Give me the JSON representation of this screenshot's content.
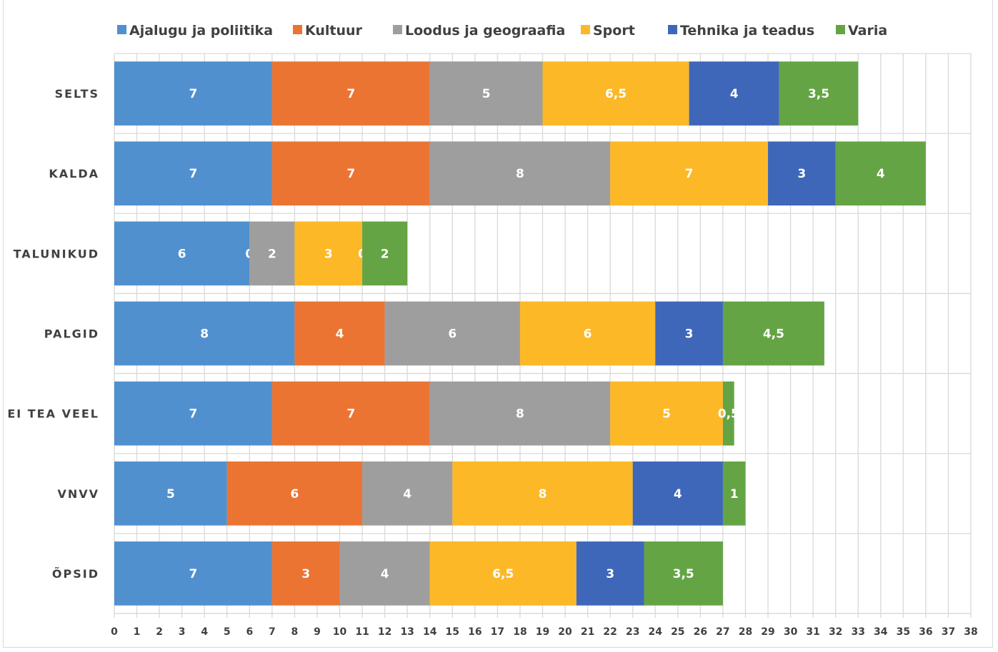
{
  "chart_data": {
    "type": "bar",
    "orientation": "horizontal",
    "stacked": true,
    "title": "",
    "xlabel": "",
    "ylabel": "",
    "xlim": [
      0,
      38
    ],
    "x_ticks": [
      0,
      1,
      2,
      3,
      4,
      5,
      6,
      7,
      8,
      9,
      10,
      11,
      12,
      13,
      14,
      15,
      16,
      17,
      18,
      19,
      20,
      21,
      22,
      23,
      24,
      25,
      26,
      27,
      28,
      29,
      30,
      31,
      32,
      33,
      34,
      35,
      36,
      37,
      38
    ],
    "grid": true,
    "legend_position": "top",
    "decimal_separator": ",",
    "categories": [
      "SELTS",
      "KALDA",
      "TALUNIKUD",
      "PALGID",
      "EI TEA VEEL",
      "VNVV",
      "ÕPSID"
    ],
    "series": [
      {
        "name": "Ajalugu ja poliitika",
        "color": "#5190CE",
        "values": [
          7,
          7,
          6,
          8,
          7,
          5,
          7
        ],
        "labels": [
          "7",
          "7",
          "6",
          "8",
          "7",
          "5",
          "7"
        ]
      },
      {
        "name": "Kultuur",
        "color": "#EB7433",
        "values": [
          7,
          7,
          0,
          4,
          7,
          6,
          3
        ],
        "labels": [
          "7",
          "7",
          "0",
          "4",
          "7",
          "6",
          "3"
        ]
      },
      {
        "name": "Loodus ja geograafia",
        "color": "#9E9E9E",
        "values": [
          5,
          8,
          2,
          6,
          8,
          4,
          4
        ],
        "labels": [
          "5",
          "8",
          "2",
          "6",
          "8",
          "4",
          "4"
        ]
      },
      {
        "name": "Sport",
        "color": "#FDB827",
        "values": [
          6.5,
          7,
          3,
          6,
          5,
          8,
          6.5
        ],
        "labels": [
          "6,5",
          "7",
          "3",
          "6",
          "5",
          "8",
          "6,5"
        ]
      },
      {
        "name": "Tehnika ja teadus",
        "color": "#3E67BA",
        "values": [
          4,
          3,
          0,
          3,
          0,
          4,
          3
        ],
        "labels": [
          "4",
          "3",
          "0",
          "3",
          "",
          "4",
          "3"
        ]
      },
      {
        "name": "Varia",
        "color": "#64A445",
        "values": [
          3.5,
          4,
          2,
          4.5,
          0.5,
          1,
          3.5
        ],
        "labels": [
          "3,5",
          "4",
          "2",
          "4,5",
          "0,5",
          "1",
          "3,5"
        ]
      }
    ]
  }
}
